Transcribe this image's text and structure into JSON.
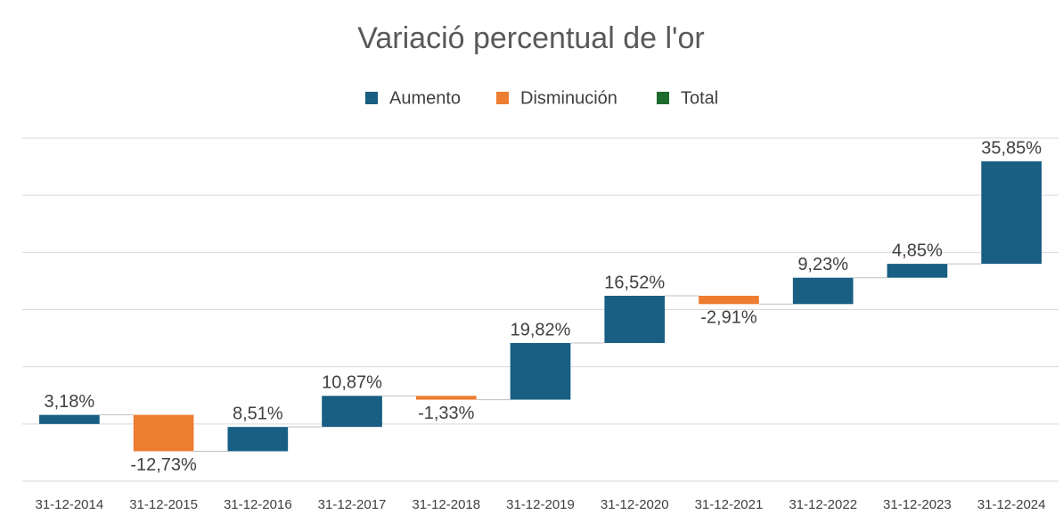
{
  "chart_data": {
    "type": "waterfall",
    "title": "Variació percentual de l'or",
    "legend": [
      {
        "name": "Aumento",
        "color": "#195e83"
      },
      {
        "name": "Disminución",
        "color": "#ed7d31"
      },
      {
        "name": "Total",
        "color": "#1e6b2e"
      }
    ],
    "categories": [
      "31-12-2014",
      "31-12-2015",
      "31-12-2016",
      "31-12-2017",
      "31-12-2018",
      "31-12-2019",
      "31-12-2020",
      "31-12-2021",
      "31-12-2022",
      "31-12-2023",
      "31-12-2024"
    ],
    "values": [
      3.18,
      -12.73,
      8.51,
      10.87,
      -1.33,
      19.82,
      16.52,
      -2.91,
      9.23,
      4.85,
      35.85
    ],
    "value_labels": [
      "3,18%",
      "-12,73%",
      "8,51%",
      "10,87%",
      "-1,33%",
      "19,82%",
      "16,52%",
      "-2,91%",
      "9,23%",
      "4,85%",
      "35,85%"
    ],
    "ylim": [
      -20,
      100
    ],
    "yticks": [
      -20,
      0,
      20,
      40,
      60,
      80,
      100
    ],
    "grid": true
  }
}
